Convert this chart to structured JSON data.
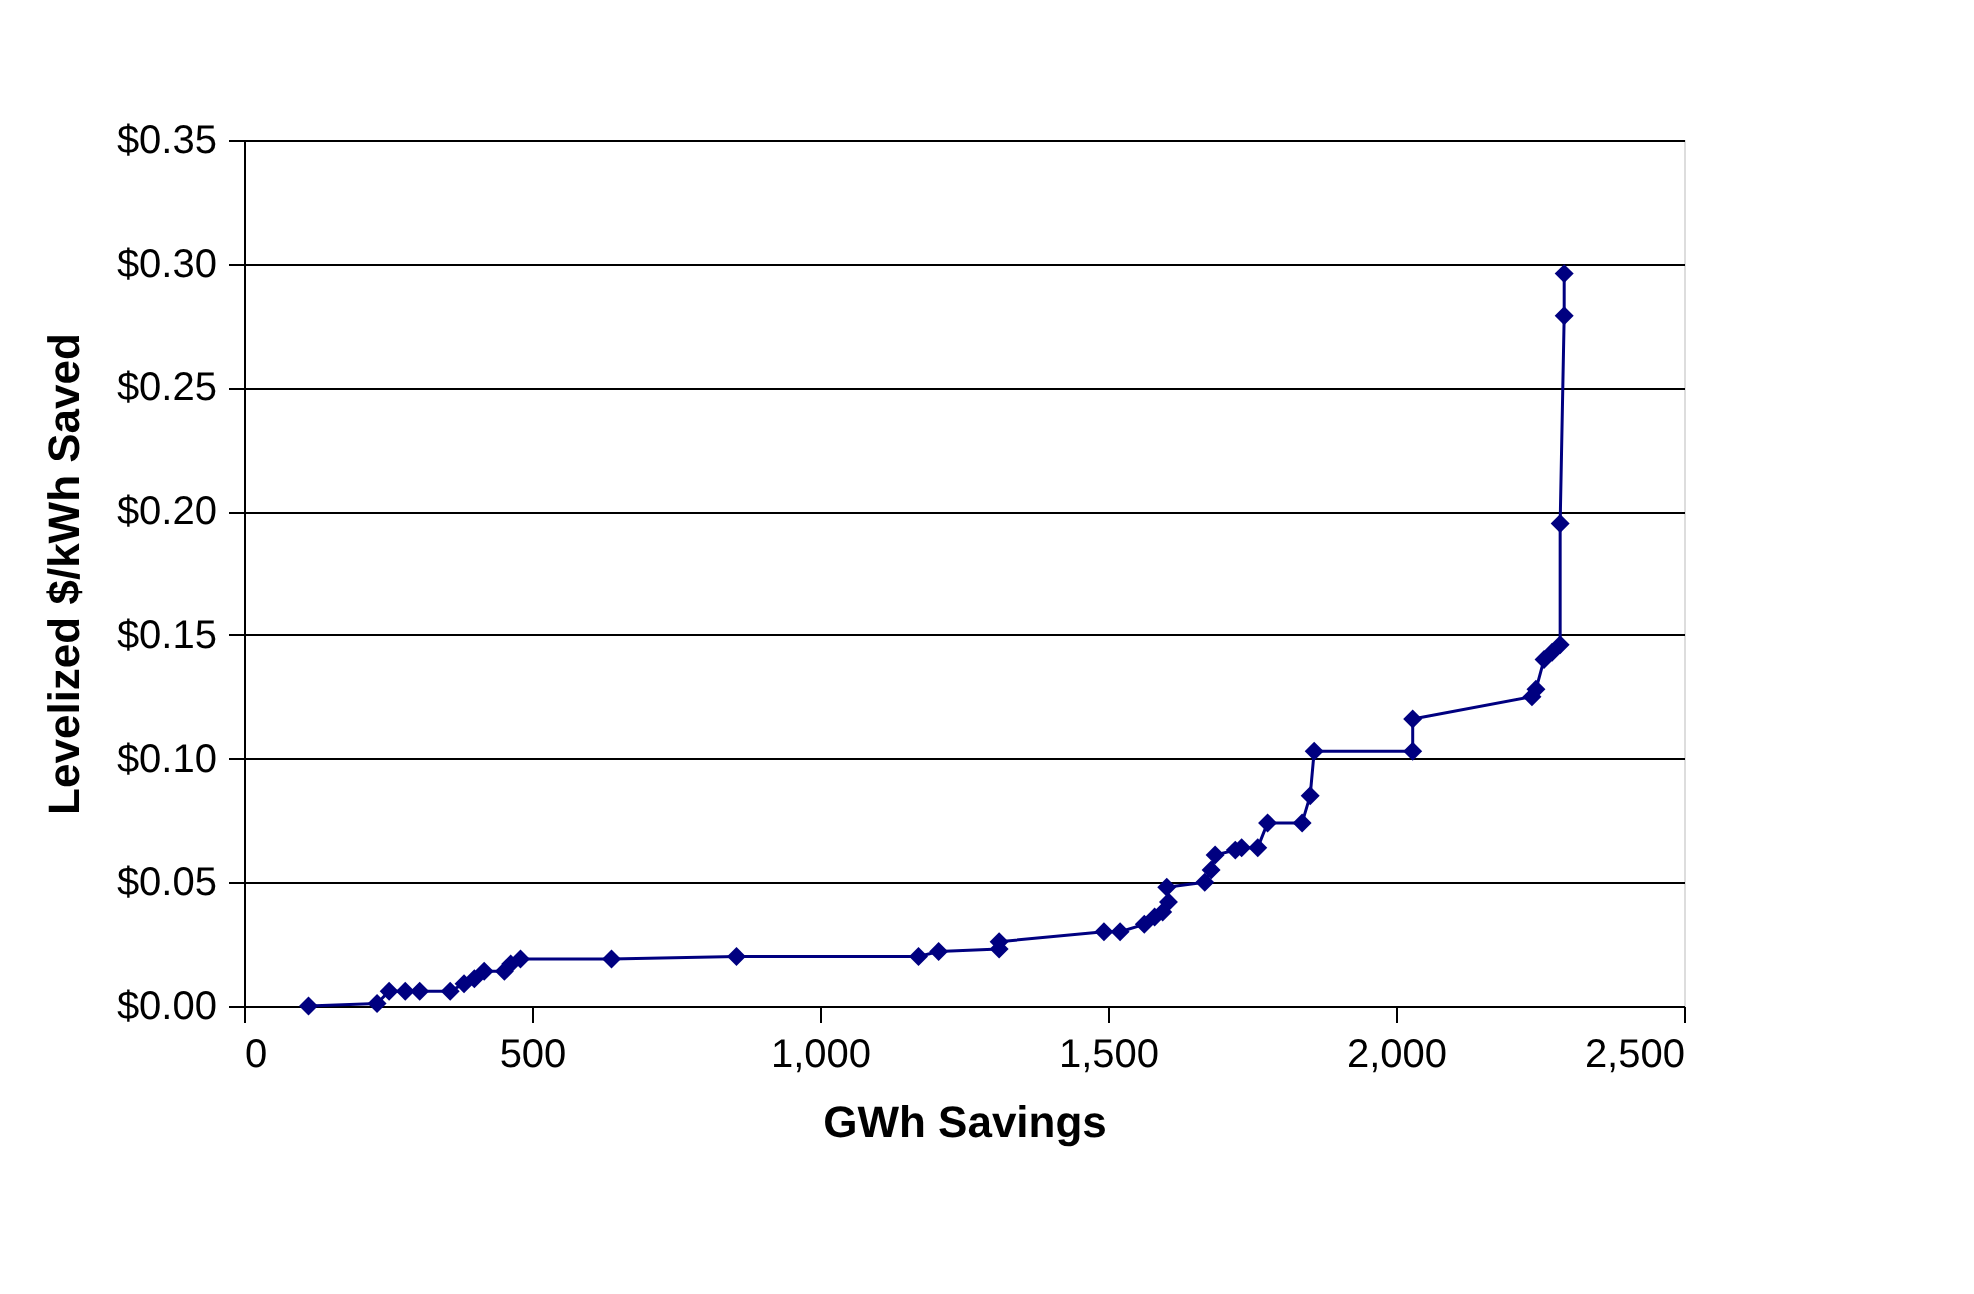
{
  "chart_data": {
    "type": "line",
    "xlabel": "GWh Savings",
    "ylabel": "Levelized $/kWh Saved",
    "x": [
      112,
      231,
      252,
      280,
      305,
      358,
      382,
      400,
      417,
      452,
      463,
      480,
      638,
      855,
      1171,
      1206,
      1311,
      1311,
      1493,
      1521,
      1563,
      1581,
      1595,
      1605,
      1602,
      1668,
      1679,
      1686,
      1721,
      1732,
      1760,
      1777,
      1837,
      1851,
      1858,
      2029,
      2029,
      2236,
      2243,
      2257,
      2271,
      2285,
      2285,
      2292,
      2292
    ],
    "series": [
      {
        "color": "#000080",
        "values": [
          0.0,
          0.001,
          0.006,
          0.006,
          0.006,
          0.006,
          0.009,
          0.011,
          0.014,
          0.014,
          0.017,
          0.019,
          0.019,
          0.02,
          0.02,
          0.022,
          0.023,
          0.026,
          0.03,
          0.03,
          0.033,
          0.036,
          0.038,
          0.042,
          0.048,
          0.05,
          0.055,
          0.061,
          0.063,
          0.064,
          0.064,
          0.074,
          0.074,
          0.085,
          0.103,
          0.103,
          0.116,
          0.125,
          0.128,
          0.14,
          0.143,
          0.146,
          0.195,
          0.279,
          0.296
        ]
      }
    ],
    "xlim": [
      0,
      2500
    ],
    "xticks": [
      0,
      500,
      {
        "value": 1000,
        "label": "1,000"
      },
      {
        "value": 1500,
        "label": "1,500"
      },
      {
        "value": 2000,
        "label": "2,000"
      },
      {
        "value": 2500,
        "label": "2,500"
      }
    ],
    "ylim": [
      0,
      0.35
    ],
    "yticks": [
      {
        "value": 0,
        "label": "$0.00"
      },
      {
        "value": 0.05,
        "label": "$0.05"
      },
      {
        "value": 0.1,
        "label": "$0.10"
      },
      {
        "value": 0.15,
        "label": "$0.15"
      },
      {
        "value": 0.2,
        "label": "$0.20"
      },
      {
        "value": 0.25,
        "label": "$0.25"
      },
      {
        "value": 0.3,
        "label": "$0.30"
      },
      {
        "value": 0.35,
        "label": "$0.35"
      }
    ],
    "grid": "y",
    "marker": "diamond",
    "line_style": "solid"
  }
}
